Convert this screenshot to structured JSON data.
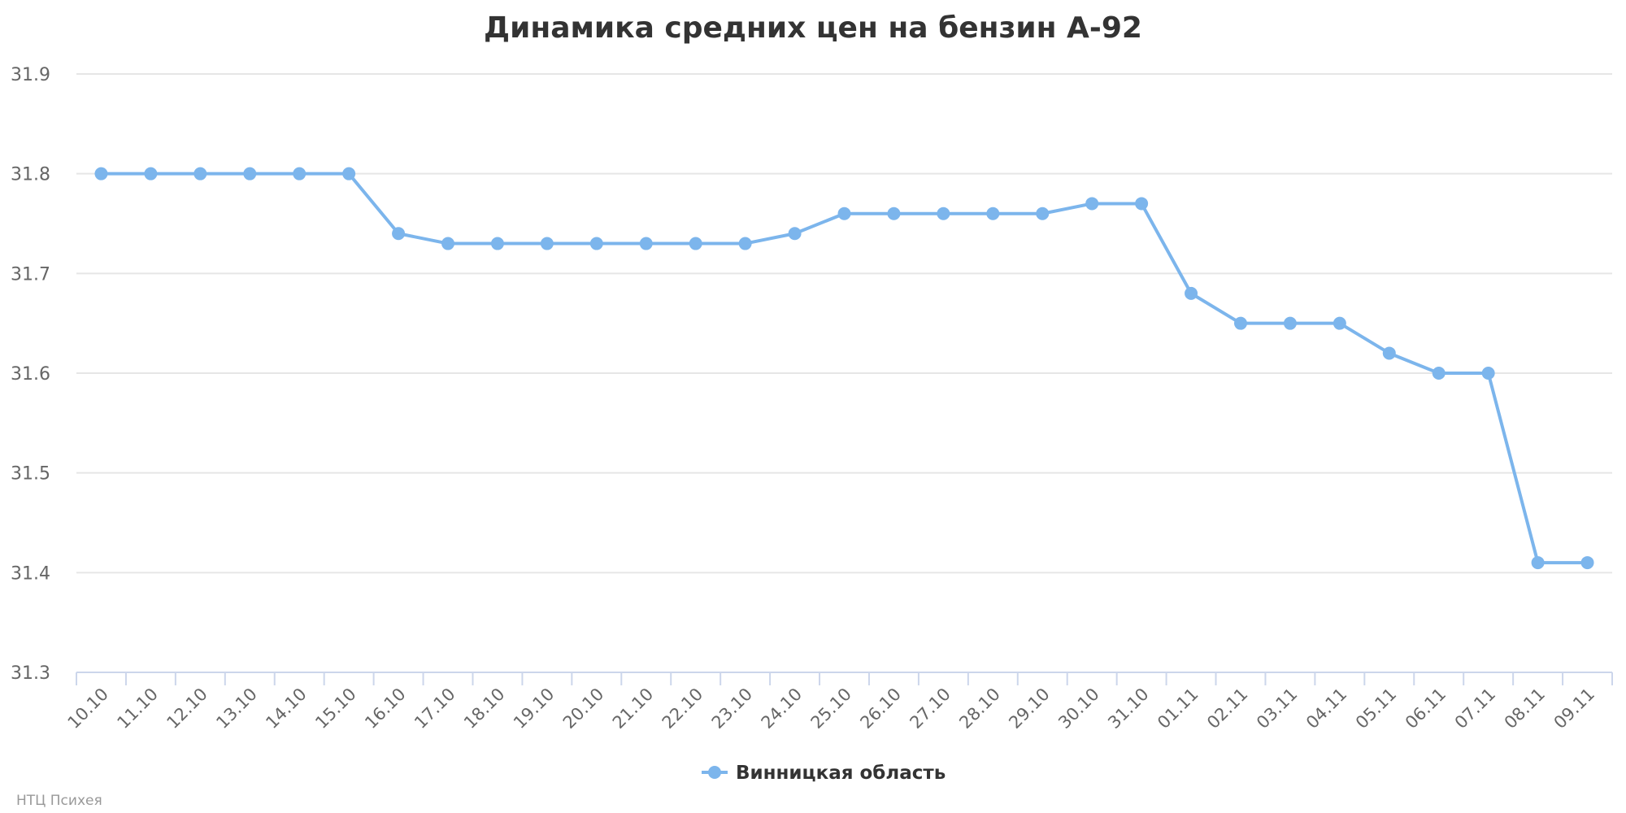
{
  "chart_data": {
    "type": "line",
    "title": "Динамика средних цен на бензин А-92",
    "categories": [
      "10.10",
      "11.10",
      "12.10",
      "13.10",
      "14.10",
      "15.10",
      "16.10",
      "17.10",
      "18.10",
      "19.10",
      "20.10",
      "21.10",
      "22.10",
      "23.10",
      "24.10",
      "25.10",
      "26.10",
      "27.10",
      "28.10",
      "29.10",
      "30.10",
      "31.10",
      "01.11",
      "02.11",
      "03.11",
      "04.11",
      "05.11",
      "06.11",
      "07.11",
      "08.11",
      "09.11"
    ],
    "series": [
      {
        "name": "Винницкая область",
        "color": "#7cb5ec",
        "values": [
          31.8,
          31.8,
          31.8,
          31.8,
          31.8,
          31.8,
          31.74,
          31.73,
          31.73,
          31.73,
          31.73,
          31.73,
          31.73,
          31.73,
          31.74,
          31.76,
          31.76,
          31.76,
          31.76,
          31.76,
          31.77,
          31.77,
          31.68,
          31.65,
          31.65,
          31.65,
          31.62,
          31.6,
          31.6,
          31.41,
          31.41
        ]
      }
    ],
    "yticks": [
      "31.3",
      "31.4",
      "31.5",
      "31.6",
      "31.7",
      "31.8",
      "31.9"
    ],
    "ylim": [
      31.3,
      31.9
    ],
    "grid": true,
    "legend_position": "bottom-center"
  },
  "credits": "НТЦ Психея"
}
